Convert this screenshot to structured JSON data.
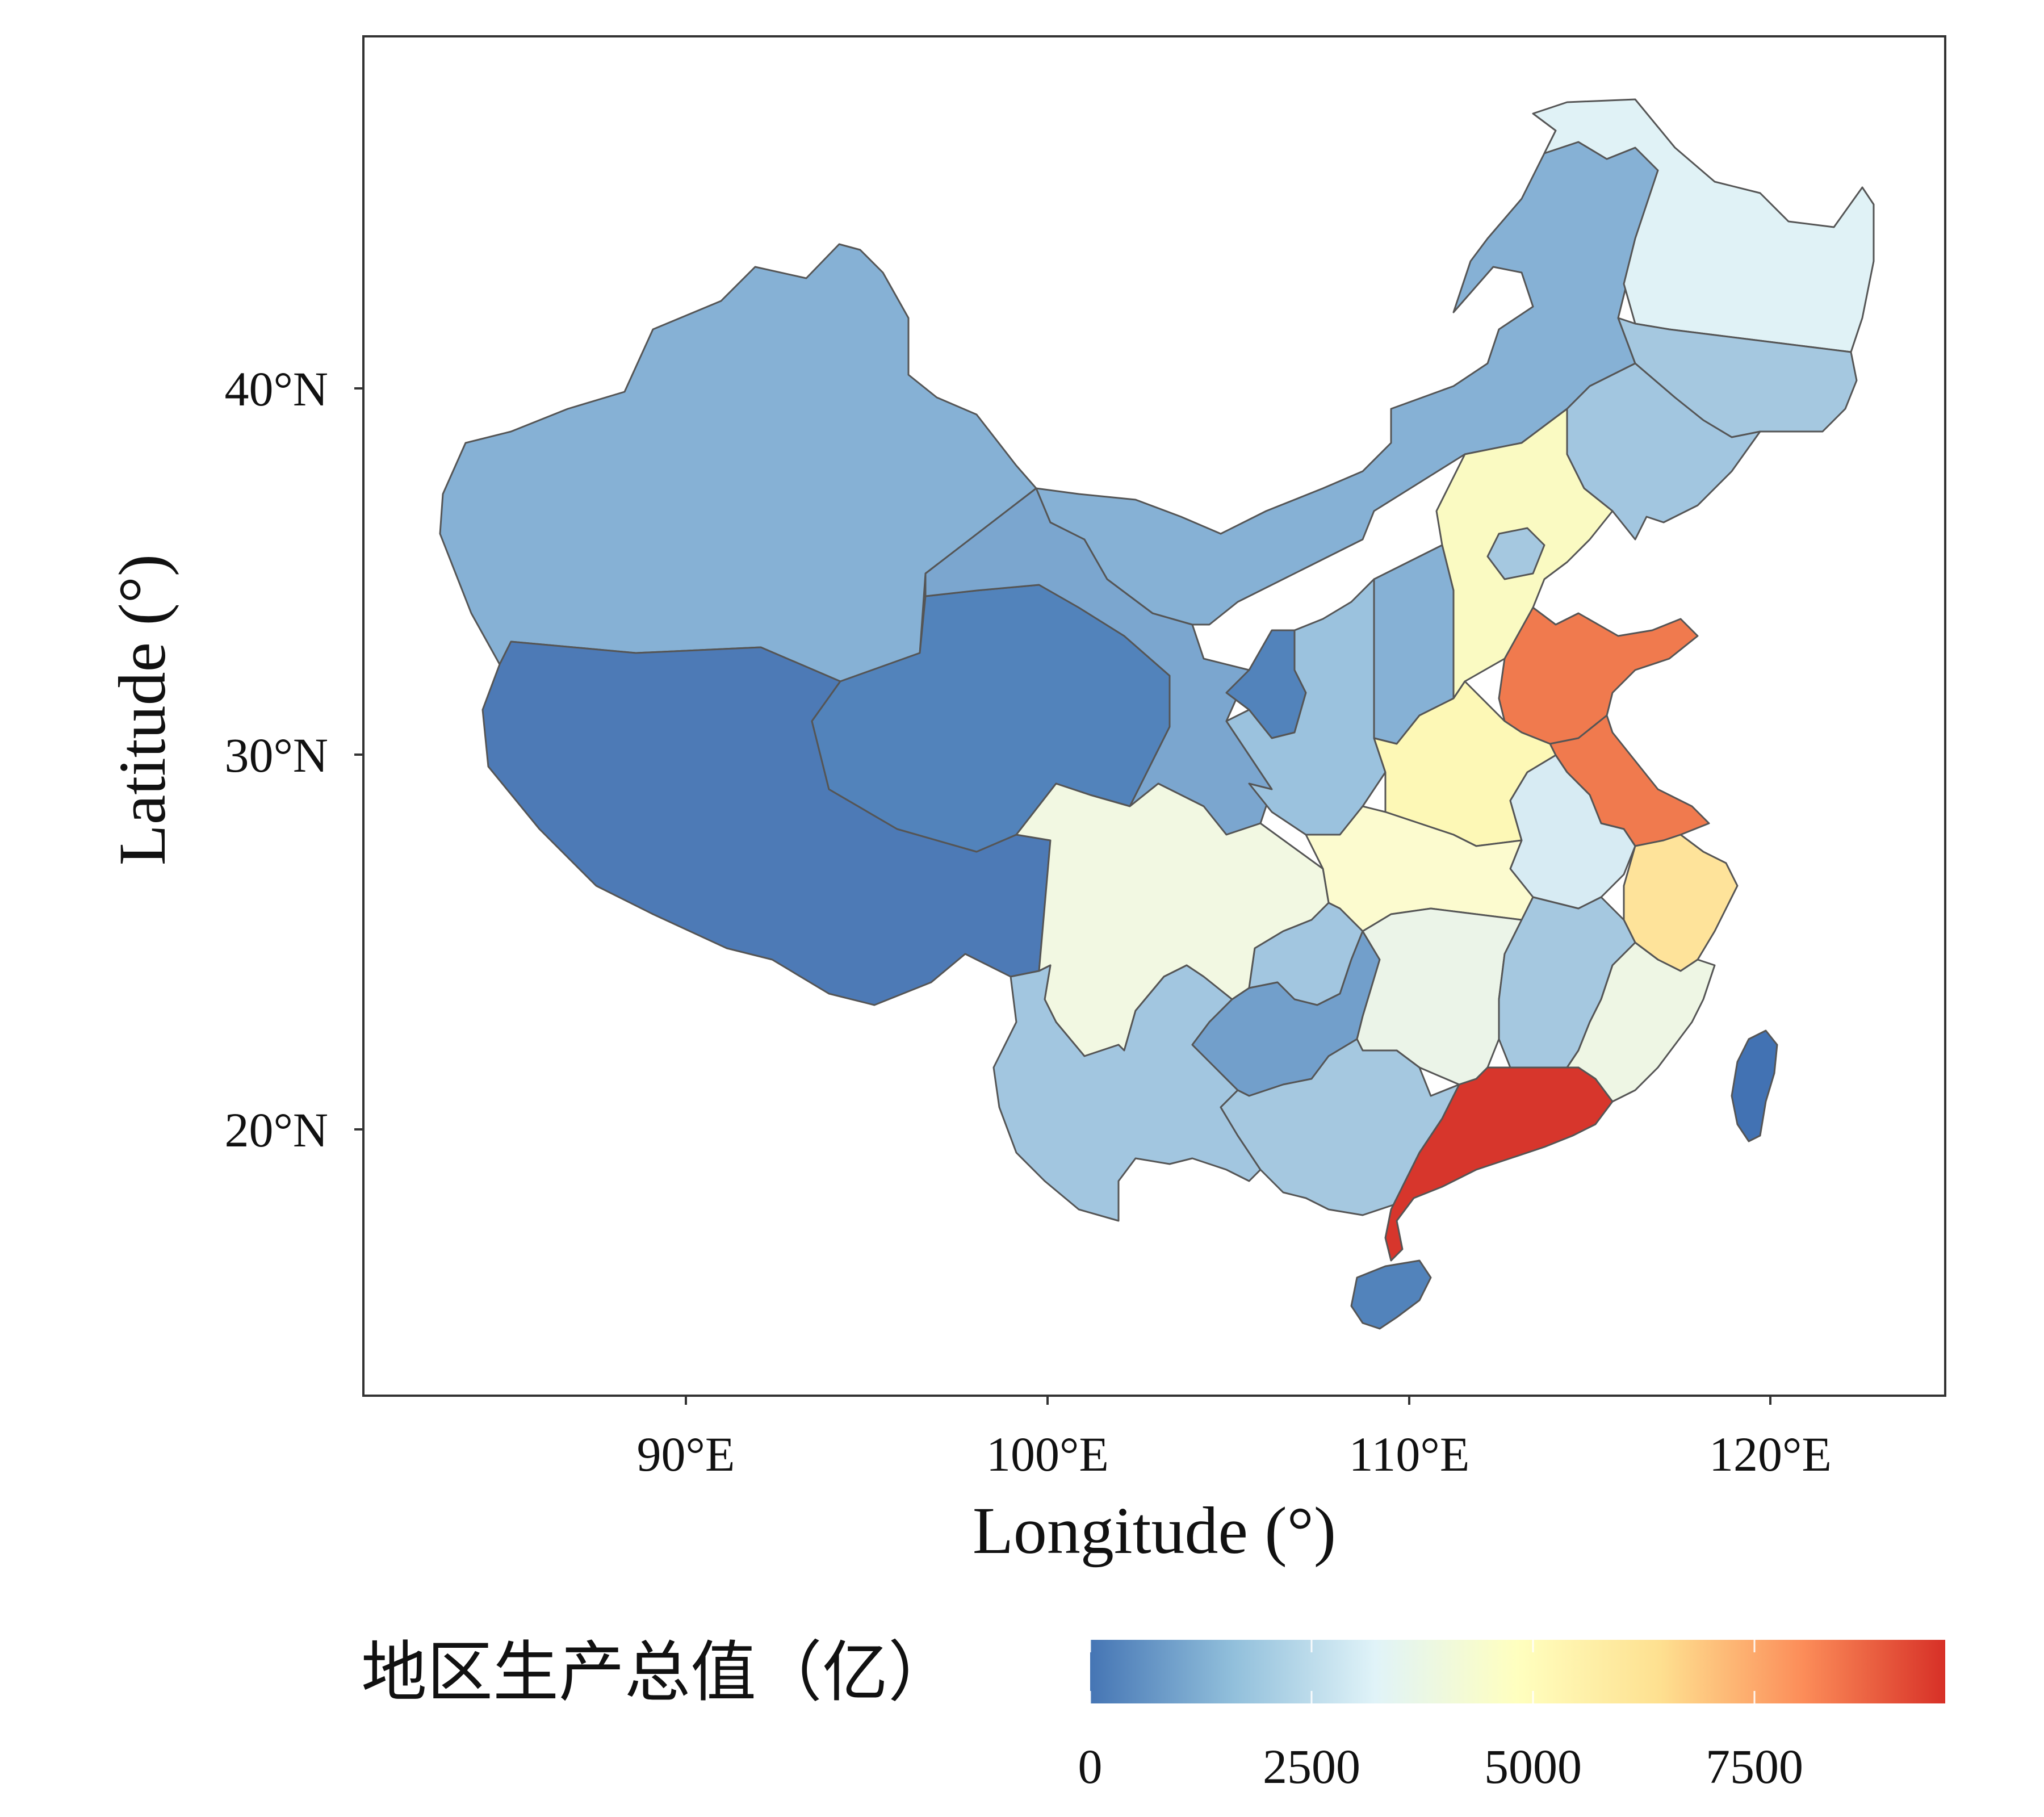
{
  "axes": {
    "xlabel": "Longitude (°)",
    "ylabel": "Latitude (°)",
    "xticks": [
      "90°E",
      "100°E",
      "110°E",
      "120°E"
    ],
    "yticks": [
      "40°N",
      "30°N",
      "20°N"
    ]
  },
  "legend": {
    "title": "地区生产总值（亿）",
    "ticks": [
      "0",
      "2500",
      "5000",
      "7500"
    ],
    "colors": [
      "#4575b4",
      "#91bfdb",
      "#e0f3f8",
      "#ffffbf",
      "#fee090",
      "#fc8d59",
      "#d73027"
    ]
  },
  "regions": [
    {
      "name": "xinjiang-region",
      "color": "#86b1d5"
    },
    {
      "name": "tibet-region",
      "color": "#4d7ab6"
    },
    {
      "name": "qinghai-region",
      "color": "#5283bb"
    },
    {
      "name": "gansu-region",
      "color": "#7ba6cf"
    },
    {
      "name": "inner-mongolia-region",
      "color": "#86b1d5"
    },
    {
      "name": "heilongjiang-region",
      "color": "#e0f2f6"
    },
    {
      "name": "jilin-region",
      "color": "#a5c8e0"
    },
    {
      "name": "liaoning-region",
      "color": "#a2c6e0"
    },
    {
      "name": "hebei-region",
      "color": "#fafac2"
    },
    {
      "name": "beijing-region",
      "color": "#a5c8e0"
    },
    {
      "name": "shandong-region",
      "color": "#f07a4e"
    },
    {
      "name": "jiangsu-region",
      "color": "#f07a4e"
    },
    {
      "name": "shanxi-region",
      "color": "#86b1d5"
    },
    {
      "name": "ningxia-region",
      "color": "#5283bb"
    },
    {
      "name": "shaanxi-region",
      "color": "#9bc2de"
    },
    {
      "name": "henan-region",
      "color": "#fdf8b6"
    },
    {
      "name": "anhui-region",
      "color": "#d7ebf3"
    },
    {
      "name": "zhejiang-region",
      "color": "#fee39a"
    },
    {
      "name": "hubei-region",
      "color": "#fcfbcf"
    },
    {
      "name": "sichuan-region",
      "color": "#f2f8e2"
    },
    {
      "name": "chongqing-region",
      "color": "#a2c6e0"
    },
    {
      "name": "yunnan-region",
      "color": "#a2c6e0"
    },
    {
      "name": "guizhou-region",
      "color": "#729fcb"
    },
    {
      "name": "hunan-region",
      "color": "#ebf4e8"
    },
    {
      "name": "jiangxi-region",
      "color": "#a5c8e0"
    },
    {
      "name": "fujian-region",
      "color": "#eef6e4"
    },
    {
      "name": "guangxi-region",
      "color": "#a5c8e0"
    },
    {
      "name": "guangdong-region",
      "color": "#d7362c"
    },
    {
      "name": "hainan-region",
      "color": "#5283bb"
    },
    {
      "name": "taiwan-region",
      "color": "#4272b3"
    }
  ]
}
